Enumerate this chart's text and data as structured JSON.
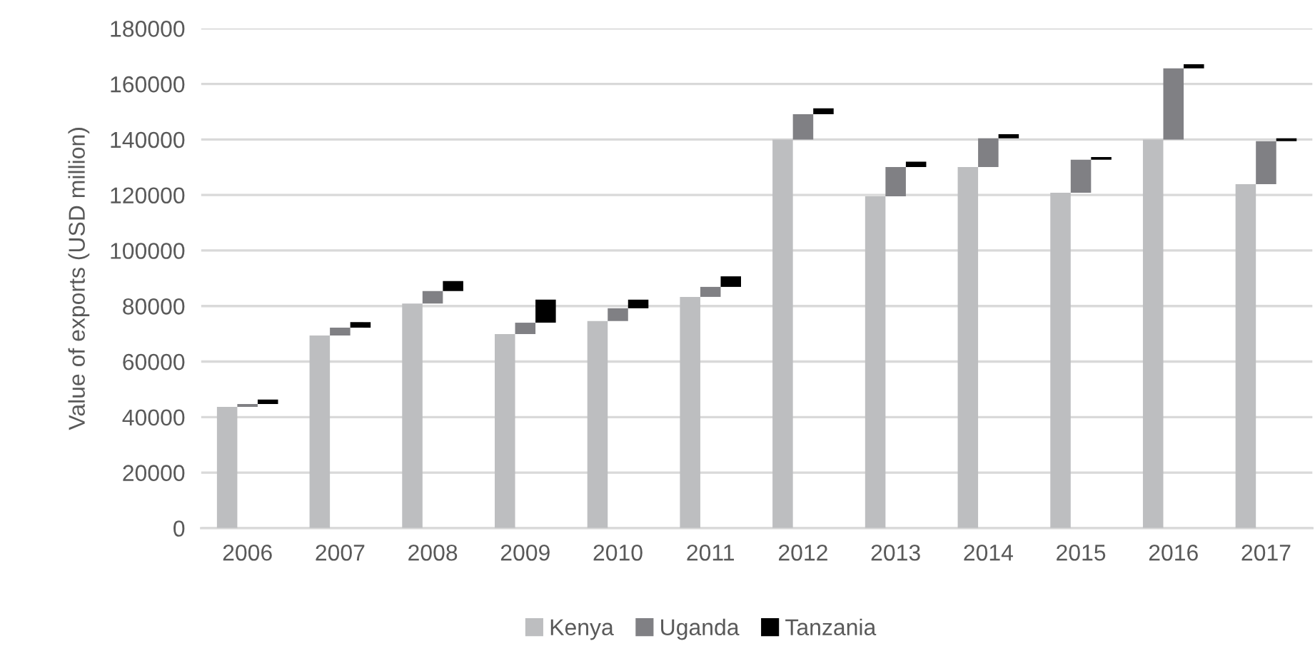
{
  "chart_data": {
    "type": "bar",
    "stacked": true,
    "ylabel": "Value of exports (USD million)",
    "categories": [
      "2006",
      "2007",
      "2008",
      "2009",
      "2010",
      "2011",
      "2012",
      "2013",
      "2014",
      "2015",
      "2016",
      "2017"
    ],
    "series": [
      {
        "name": "Kenya",
        "color": "#bdbec0",
        "values": [
          43700,
          69400,
          80900,
          69900,
          74600,
          83300,
          140000,
          119500,
          130100,
          120800,
          140000,
          123900
        ]
      },
      {
        "name": "Uganda",
        "color": "#808084",
        "values": [
          1000,
          2800,
          4500,
          4100,
          4600,
          3600,
          9100,
          10600,
          10300,
          11900,
          25600,
          15500
        ]
      },
      {
        "name": "Tanzania",
        "color": "#000000",
        "values": [
          1600,
          2000,
          3600,
          8300,
          3100,
          3800,
          2100,
          1900,
          1500,
          1000,
          1500,
          1000
        ]
      }
    ],
    "ylim": [
      0,
      180000
    ],
    "yticks": [
      0,
      20000,
      40000,
      60000,
      80000,
      100000,
      120000,
      140000,
      160000,
      180000
    ],
    "grid": "y",
    "legend": "bottom"
  }
}
